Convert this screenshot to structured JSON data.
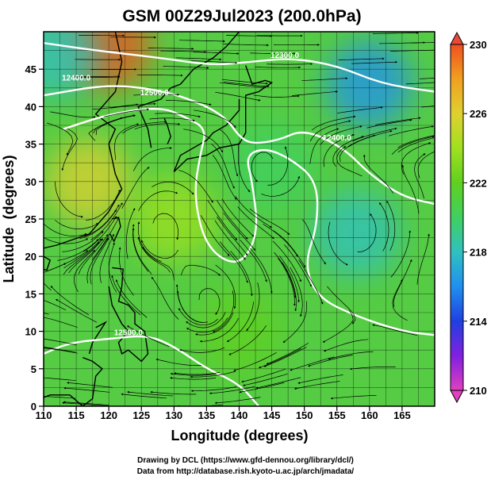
{
  "title": "GSM 00Z29Jul2023 (200.0hPa)",
  "chart_data": {
    "type": "heatmap",
    "title": "GSM 00Z29Jul2023 (200.0hPa)",
    "xlabel": "Longitude (degrees)",
    "ylabel": "Latitude  (degrees)",
    "xlim": [
      110,
      170
    ],
    "ylim": [
      0,
      50
    ],
    "xticks": [
      110,
      115,
      120,
      125,
      130,
      135,
      140,
      145,
      150,
      155,
      160,
      165
    ],
    "yticks": [
      0,
      5,
      10,
      15,
      20,
      25,
      30,
      35,
      40,
      45
    ],
    "grid": true,
    "grid_step_deg": 2.5,
    "colorbar": {
      "ticks": [
        210,
        214,
        218,
        222,
        226,
        230
      ],
      "range": [
        210,
        230
      ],
      "colors": [
        "#e040c0",
        "#8020e0",
        "#2040e0",
        "#2090f0",
        "#30c0c0",
        "#40d060",
        "#60d020",
        "#a0e020",
        "#e0d030",
        "#f0a020",
        "#f05020"
      ]
    },
    "field_samples": [
      {
        "lon": 120,
        "lat": 48,
        "value": 228.5
      },
      {
        "lon": 117,
        "lat": 30,
        "value": 226.0
      },
      {
        "lon": 160,
        "lat": 43,
        "value": 215.5
      },
      {
        "lon": 158,
        "lat": 23,
        "value": 218.5
      },
      {
        "lon": 145,
        "lat": 32,
        "value": 219.5
      },
      {
        "lon": 112,
        "lat": 47,
        "value": 218.0
      },
      {
        "lon": 140,
        "lat": 10,
        "value": 222.0
      },
      {
        "lon": 130,
        "lat": 25,
        "value": 223.0
      }
    ],
    "contours": [
      {
        "label": "12300.0",
        "label_lon": 147,
        "label_lat": 46.5
      },
      {
        "label": "12400.0",
        "label_lon": 115,
        "label_lat": 43.5
      },
      {
        "label": "12500.0",
        "label_lon": 127,
        "label_lat": 41.5
      },
      {
        "label": "12400.0",
        "label_lon": 155,
        "label_lat": 35.5
      },
      {
        "label": "12500.0",
        "label_lon": 123,
        "label_lat": 9.5
      }
    ]
  },
  "footer": {
    "line1": "Drawing by DCL (https://www.gfd-dennou.org/library/dcl/)",
    "line2": "Data from http://database.rish.kyoto-u.ac.jp/arch/jmadata/"
  }
}
